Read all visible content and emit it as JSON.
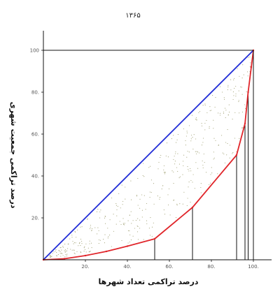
{
  "chart_data": {
    "type": "line",
    "title": "۱۳۶۵",
    "xlabel": "درصد تراکمی تعداد شهرها",
    "ylabel": "درصد تراکمی جمعیت شهری",
    "xlim": [
      0,
      100
    ],
    "ylim": [
      0,
      100
    ],
    "x_ticks": [
      {
        "value": 20,
        "label": "20."
      },
      {
        "value": 40,
        "label": "40."
      },
      {
        "value": 60,
        "label": "60."
      },
      {
        "value": 80,
        "label": "80."
      },
      {
        "value": 100,
        "label": "100."
      }
    ],
    "y_ticks": [
      {
        "value": 20,
        "label": "20."
      },
      {
        "value": 40,
        "label": "40."
      },
      {
        "value": 60,
        "label": "60."
      },
      {
        "value": 80,
        "label": "80."
      },
      {
        "value": 100,
        "label": "100"
      }
    ],
    "grid": false,
    "legend": "none",
    "series": [
      {
        "role": "equality-line",
        "color": "#1f2bd6",
        "x": [
          0,
          100
        ],
        "y": [
          0,
          100
        ]
      },
      {
        "role": "lorenz-curve",
        "color": "#e0262b",
        "x": [
          0,
          10,
          20,
          30,
          40,
          53,
          71,
          92,
          96,
          97.5,
          99,
          100
        ],
        "y": [
          0,
          0.5,
          2,
          4,
          6.5,
          10,
          25,
          50,
          65,
          80,
          92,
          100
        ]
      }
    ],
    "drop_lines_x": [
      53,
      71,
      92,
      96,
      97.5
    ],
    "scatter_color": "#9a9a6a"
  }
}
